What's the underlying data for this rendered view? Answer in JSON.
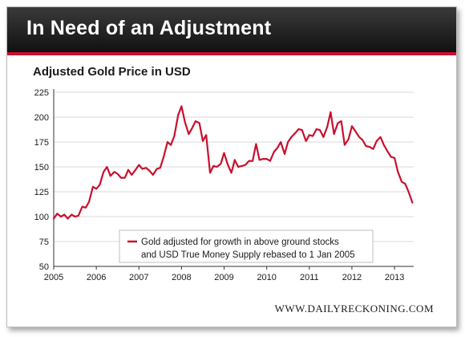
{
  "header": {
    "title": "In Need of an Adjustment"
  },
  "colors": {
    "line": "#c8102e",
    "header_bg": "#1a1a1a",
    "accent": "#c8102e"
  },
  "watermark": "WWW.DAILYRECKONING.COM",
  "chart_data": {
    "type": "line",
    "title": "Adjusted Gold Price in USD",
    "xlabel": "",
    "ylabel": "",
    "xlim": [
      2005,
      2013.45
    ],
    "ylim": [
      50,
      225
    ],
    "yticks": [
      50,
      75,
      100,
      125,
      150,
      175,
      200,
      225
    ],
    "xticks": [
      "2005",
      "2006",
      "2007",
      "2008",
      "2009",
      "2010",
      "2011",
      "2012",
      "2013"
    ],
    "grid": "horizontal",
    "legend": {
      "position": "bottom-center",
      "lines": [
        "Gold adjusted for growth in above ground stocks",
        "and USD True Money Supply rebased to 1 Jan 2005"
      ]
    },
    "series": [
      {
        "x": [
          2005.0,
          2005.08,
          2005.17,
          2005.25,
          2005.33,
          2005.42,
          2005.5,
          2005.58,
          2005.67,
          2005.75,
          2005.83,
          2005.92,
          2006.0,
          2006.08,
          2006.17,
          2006.25,
          2006.33,
          2006.42,
          2006.5,
          2006.58,
          2006.67,
          2006.75,
          2006.83,
          2006.92,
          2007.0,
          2007.08,
          2007.17,
          2007.25,
          2007.33,
          2007.42,
          2007.5,
          2007.58,
          2007.67,
          2007.75,
          2007.83,
          2007.92,
          2008.0,
          2008.08,
          2008.17,
          2008.25,
          2008.33,
          2008.42,
          2008.5,
          2008.58,
          2008.67,
          2008.75,
          2008.83,
          2008.92,
          2009.0,
          2009.08,
          2009.17,
          2009.25,
          2009.33,
          2009.42,
          2009.5,
          2009.58,
          2009.67,
          2009.75,
          2009.83,
          2009.92,
          2010.0,
          2010.08,
          2010.17,
          2010.25,
          2010.33,
          2010.42,
          2010.5,
          2010.58,
          2010.67,
          2010.75,
          2010.83,
          2010.92,
          2011.0,
          2011.08,
          2011.17,
          2011.25,
          2011.33,
          2011.42,
          2011.5,
          2011.58,
          2011.67,
          2011.75,
          2011.83,
          2011.92,
          2012.0,
          2012.08,
          2012.17,
          2012.25,
          2012.33,
          2012.42,
          2012.5,
          2012.58,
          2012.67,
          2012.75,
          2012.83,
          2012.92,
          2013.0,
          2013.08,
          2013.17,
          2013.25,
          2013.33,
          2013.42
        ],
        "y": [
          98,
          103,
          100,
          102,
          98,
          102,
          100,
          101,
          110,
          109,
          115,
          130,
          128,
          132,
          145,
          150,
          141,
          145,
          143,
          139,
          139,
          147,
          142,
          147,
          152,
          148,
          149,
          146,
          142,
          148,
          149,
          160,
          175,
          172,
          181,
          202,
          211,
          195,
          183,
          189,
          196,
          194,
          176,
          182,
          144,
          151,
          150,
          153,
          164,
          153,
          144,
          157,
          150,
          151,
          152,
          156,
          156,
          173,
          157,
          158,
          158,
          156,
          165,
          169,
          175,
          163,
          175,
          180,
          184,
          188,
          187,
          176,
          182,
          181,
          188,
          187,
          180,
          190,
          205,
          183,
          194,
          196,
          172,
          178,
          191,
          186,
          180,
          177,
          171,
          170,
          168,
          176,
          180,
          172,
          166,
          160,
          159,
          145,
          135,
          133,
          125,
          114
        ]
      }
    ]
  }
}
